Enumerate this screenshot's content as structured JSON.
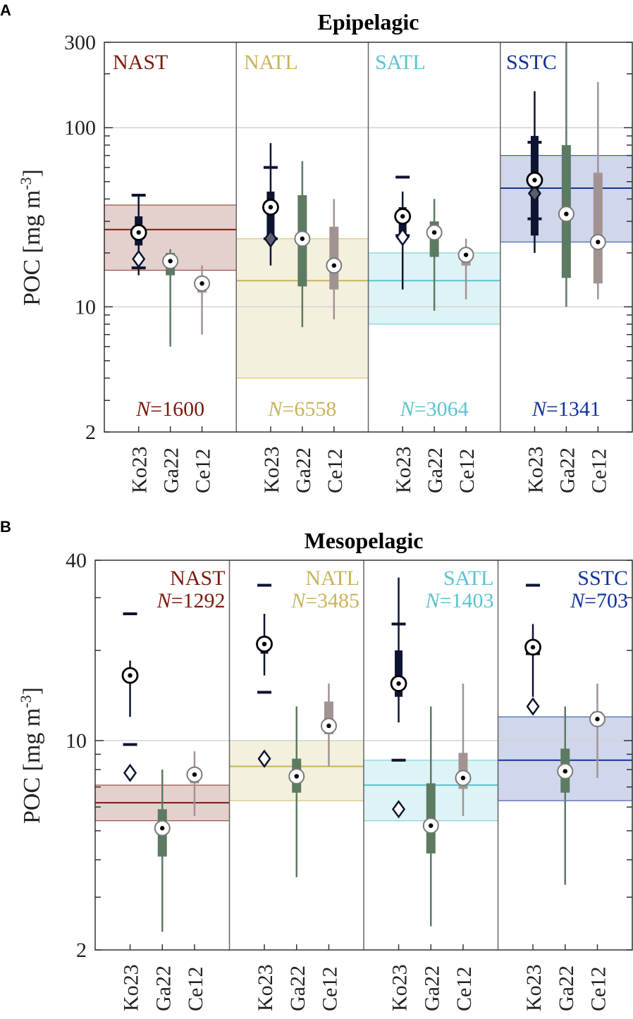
{
  "chart_data": [
    {
      "type": "boxplot",
      "panel_label": "A",
      "title": "Epipelagic",
      "ylabel": "POC [mg m",
      "ylabel_sup": "-3",
      "ylabel_close": "]",
      "yscale": "log",
      "ylim": [
        2,
        300
      ],
      "yticks": [
        2,
        10,
        100,
        300
      ],
      "ytick_labels": [
        "2",
        "10",
        "100",
        "300"
      ],
      "gridlines": [
        10,
        100
      ],
      "n_prefix": "N",
      "provinces": [
        {
          "name": "NAST",
          "color": "#7a1a0c",
          "n_value": "=1600",
          "band": {
            "center": 27,
            "low": 16,
            "high": 37
          },
          "boxes": [
            {
              "product": "Ko23",
              "median": 26,
              "q1": 22,
              "q3": 32,
              "whisker_low": 15,
              "whisker_high": 42,
              "mean": 18.5,
              "p_low": 16.5,
              "p_high": 42
            },
            {
              "product": "Ga22",
              "median": 18,
              "q1": 15,
              "q3": 20,
              "whisker_low": 6,
              "whisker_high": 21
            },
            {
              "product": "Ce12",
              "median": 13.5,
              "q1": 12,
              "q3": 14,
              "whisker_low": 7,
              "whisker_high": 17
            }
          ]
        },
        {
          "name": "NATL",
          "color": "#c8b45a",
          "n_value": "=6558",
          "band": {
            "center": 14,
            "low": 4,
            "high": 24
          },
          "boxes": [
            {
              "product": "Ko23",
              "median": 36,
              "q1": 24,
              "q3": 44,
              "whisker_low": 17,
              "whisker_high": 82,
              "mean": 24,
              "p_low": 24,
              "p_high": 60
            },
            {
              "product": "Ga22",
              "median": 24,
              "q1": 13,
              "q3": 42,
              "whisker_low": 7.7,
              "whisker_high": 65
            },
            {
              "product": "Ce12",
              "median": 17,
              "q1": 12.5,
              "q3": 28,
              "whisker_low": 8.5,
              "whisker_high": 40
            }
          ]
        },
        {
          "name": "SATL",
          "color": "#5cc3cf",
          "n_value": "=3064",
          "band": {
            "center": 14,
            "low": 8,
            "high": 20
          },
          "boxes": [
            {
              "product": "Ko23",
              "median": 32,
              "q1": 25,
              "q3": 36,
              "whisker_low": 12.5,
              "whisker_high": 44,
              "mean": 24.5,
              "p_low": 25,
              "p_high": 53
            },
            {
              "product": "Ga22",
              "median": 26,
              "q1": 19,
              "q3": 30,
              "whisker_low": 9.5,
              "whisker_high": 40
            },
            {
              "product": "Ce12",
              "median": 19.5,
              "q1": 17,
              "q3": 20,
              "whisker_low": 11,
              "whisker_high": 24
            }
          ]
        },
        {
          "name": "SSTC",
          "color": "#12329a",
          "n_value": "=1341",
          "band": {
            "center": 46,
            "low": 23,
            "high": 70
          },
          "boxes": [
            {
              "product": "Ko23",
              "median": 51,
              "q1": 25,
              "q3": 90,
              "whisker_low": 20,
              "whisker_high": 160,
              "mean": 43,
              "p_low": 31,
              "p_high": 83
            },
            {
              "product": "Ga22",
              "median": 33,
              "q1": 14.5,
              "q3": 80,
              "whisker_low": 10,
              "whisker_high": 300
            },
            {
              "product": "Ce12",
              "median": 23,
              "q1": 13.5,
              "q3": 56,
              "whisker_low": 11,
              "whisker_high": 180
            }
          ]
        }
      ]
    },
    {
      "type": "boxplot",
      "panel_label": "B",
      "title": "Mesopelagic",
      "ylabel": "POC [mg m",
      "ylabel_sup": "-3",
      "ylabel_close": "]",
      "yscale": "log",
      "ylim": [
        2,
        40
      ],
      "yticks": [
        2,
        10,
        40
      ],
      "ytick_labels": [
        "2",
        "10",
        "40"
      ],
      "gridlines": [
        10
      ],
      "n_prefix": "N",
      "provinces": [
        {
          "name": "NAST",
          "color": "#7a1a0c",
          "n_value": "=1292",
          "band": {
            "center": 6.2,
            "low": 5.4,
            "high": 7.1
          },
          "boxes": [
            {
              "product": "Ko23",
              "median": 16.5,
              "q1": 16.5,
              "q3": 16.5,
              "whisker_low": 12,
              "whisker_high": 18.5,
              "mean": 7.8,
              "p_low": 9.7,
              "p_high": 26.5
            },
            {
              "product": "Ga22",
              "median": 5.1,
              "q1": 4.1,
              "q3": 5.9,
              "whisker_low": 2.3,
              "whisker_high": 8
            },
            {
              "product": "Ce12",
              "median": 7.7,
              "q1": 7.2,
              "q3": 7.7,
              "whisker_low": 5.6,
              "whisker_high": 9.2
            }
          ]
        },
        {
          "name": "NATL",
          "color": "#c8b45a",
          "n_value": "=3485",
          "band": {
            "center": 8.2,
            "low": 6.3,
            "high": 10
          },
          "boxes": [
            {
              "product": "Ko23",
              "median": 21,
              "q1": 19.5,
              "q3": 21,
              "whisker_low": 16.5,
              "whisker_high": 26.5,
              "mean": 8.7,
              "p_low": 14.5,
              "p_high": 33
            },
            {
              "product": "Ga22",
              "median": 7.6,
              "q1": 6.7,
              "q3": 8.7,
              "whisker_low": 3.5,
              "whisker_high": 13
            },
            {
              "product": "Ce12",
              "median": 11.2,
              "q1": 10.5,
              "q3": 13.5,
              "whisker_low": 8.2,
              "whisker_high": 15.5
            }
          ]
        },
        {
          "name": "SATL",
          "color": "#5cc3cf",
          "n_value": "=1403",
          "band": {
            "center": 7.1,
            "low": 5.4,
            "high": 8.6
          },
          "boxes": [
            {
              "product": "Ko23",
              "median": 15.5,
              "q1": 14,
              "q3": 20,
              "whisker_low": 11.5,
              "whisker_high": 35,
              "mean": 5.9,
              "p_low": 8.6,
              "p_high": 24.5
            },
            {
              "product": "Ga22",
              "median": 5.2,
              "q1": 4.2,
              "q3": 7.2,
              "whisker_low": 2.4,
              "whisker_high": 13
            },
            {
              "product": "Ce12",
              "median": 7.5,
              "q1": 6.9,
              "q3": 9.1,
              "whisker_low": 5.6,
              "whisker_high": 15.5
            }
          ]
        },
        {
          "name": "SSTC",
          "color": "#12329a",
          "n_value": "=703",
          "band": {
            "center": 8.6,
            "low": 6.3,
            "high": 12
          },
          "boxes": [
            {
              "product": "Ko23",
              "median": 20.5,
              "q1": 19.5,
              "q3": 20.5,
              "whisker_low": 14,
              "whisker_high": 24.5,
              "mean": 13,
              "p_low": 19.5,
              "p_high": 33
            },
            {
              "product": "Ga22",
              "median": 7.9,
              "q1": 6.7,
              "q3": 9.4,
              "whisker_low": 3.3,
              "whisker_high": 13
            },
            {
              "product": "Ce12",
              "median": 11.8,
              "q1": 11.5,
              "q3": 12.5,
              "whisker_low": 7.5,
              "whisker_high": 15.5
            }
          ]
        }
      ]
    }
  ],
  "product_colors": {
    "Ko23": "#0d1430",
    "Ga22": "#5d7a62",
    "Ce12": "#a29393"
  }
}
